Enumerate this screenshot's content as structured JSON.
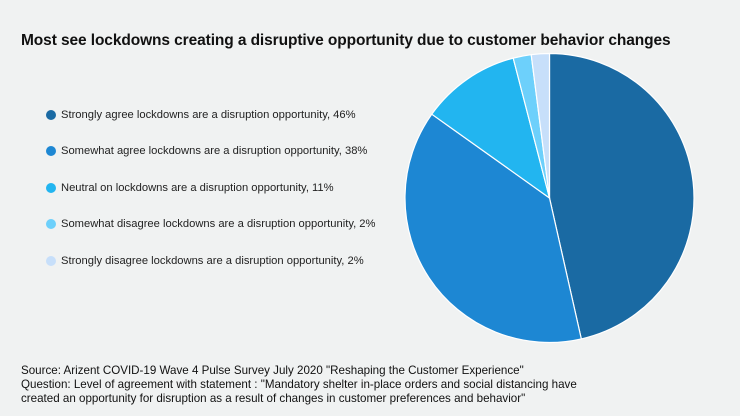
{
  "chart_data": {
    "type": "pie",
    "title": "Most see lockdowns creating a disruptive opportunity due to customer behavior changes",
    "start_angle_deg": 0,
    "direction": "clockwise",
    "slices": [
      {
        "label": "Strongly agree lockdowns are a disruption opportunity, 46%",
        "category": "Strongly agree",
        "value": 46,
        "color": "#1a6aa3"
      },
      {
        "label": "Somewhat agree lockdowns are a disruption opportunity, 38%",
        "category": "Somewhat agree",
        "value": 38,
        "color": "#1d87d3"
      },
      {
        "label": "Neutral on lockdowns are a disruption opportunity, 11%",
        "category": "Neutral",
        "value": 11,
        "color": "#22b5f0"
      },
      {
        "label": "Somewhat disagree lockdowns are a disruption opportunity, 2%",
        "category": "Somewhat disagree",
        "value": 2,
        "color": "#6dd0fb"
      },
      {
        "label": "Strongly disagree lockdowns are a disruption opportunity, 2%",
        "category": "Strongly disagree",
        "value": 2,
        "color": "#c7dffa"
      }
    ],
    "legend_position": "left"
  },
  "footer": {
    "source": "Source: Arizent COVID-19 Wave 4 Pulse Survey July 2020 \"Reshaping the Customer Experience\"",
    "question_line1": "Question: Level of agreement with statement : \"Mandatory shelter in-place orders and social distancing have",
    "question_line2": "created an opportunity for disruption as a result of changes in customer preferences and behavior\""
  }
}
